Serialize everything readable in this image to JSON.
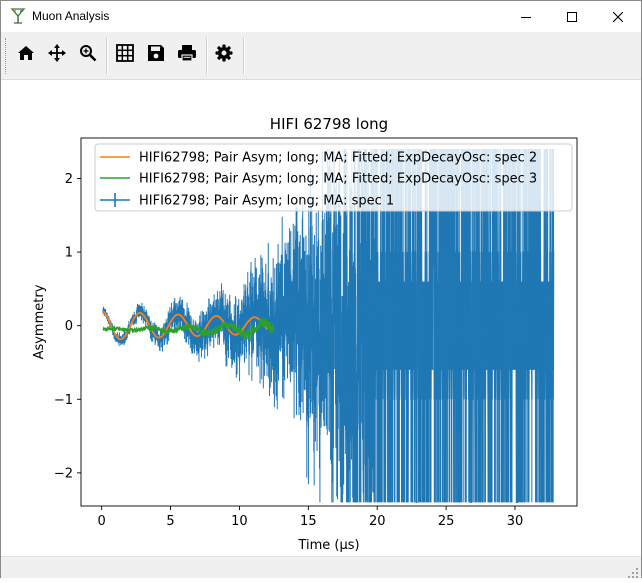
{
  "window": {
    "title": "Muon Analysis",
    "icons": {
      "app": "muon-app-icon",
      "minimize": "minimize-icon",
      "maximize": "maximize-icon",
      "close": "close-icon"
    }
  },
  "toolbar": {
    "buttons": [
      {
        "name": "home",
        "icon": "home-icon"
      },
      {
        "name": "pan",
        "icon": "move-arrows-icon"
      },
      {
        "name": "zoom",
        "icon": "zoom-magnifier-icon"
      },
      {
        "name": "grid",
        "icon": "grid-icon"
      },
      {
        "name": "save",
        "icon": "floppy-disk-icon"
      },
      {
        "name": "print",
        "icon": "printer-icon"
      },
      {
        "name": "settings",
        "icon": "gear-icon"
      }
    ]
  },
  "chart_data": {
    "type": "line",
    "title": "HIFI 62798 long",
    "xlabel": "Time (μs)",
    "ylabel": "Asymmetry",
    "xlim": [
      -1.5,
      34.5
    ],
    "ylim": [
      -2.45,
      2.55
    ],
    "xticks": [
      0,
      5,
      10,
      15,
      20,
      25,
      30
    ],
    "yticks": [
      -2,
      -1,
      0,
      1,
      2
    ],
    "grid": false,
    "legend_position": "top-right",
    "series": [
      {
        "name": "HIFI62798; Pair Asym; long; MA: spec 1",
        "color": "#1f77b4",
        "errorbars": true,
        "x_range": [
          0.1,
          32.8
        ],
        "values_clip": [
          -2.4,
          2.4
        ],
        "sample_points": [
          [
            0.2,
            0.18
          ],
          [
            2.5,
            -0.15
          ],
          [
            5.0,
            -0.05
          ],
          [
            7.8,
            0.25
          ],
          [
            10.0,
            -0.3
          ],
          [
            12.0,
            0.3
          ],
          [
            14.0,
            -0.6
          ],
          [
            17.0,
            0.6
          ],
          [
            20.0,
            1.0
          ],
          [
            25.0,
            -1.0
          ],
          [
            32.8,
            0.0
          ]
        ]
      },
      {
        "name": "HIFI62798; Pair Asym; long; MA; Fitted; ExpDecayOsc: spec 2",
        "color": "#ff7f0e",
        "x_range": [
          0.1,
          12.0
        ],
        "amplitude": 0.2,
        "frequency_per_us": 0.36,
        "decay_per_us": 0.05
      },
      {
        "name": "HIFI62798; Pair Asym; long; MA; Fitted; ExpDecayOsc: spec 3",
        "color": "#2ca02c",
        "x_range": [
          0.1,
          12.5
        ],
        "offset": -0.05,
        "amplitude": 0.08,
        "frequency_per_us": 0.36
      }
    ]
  }
}
